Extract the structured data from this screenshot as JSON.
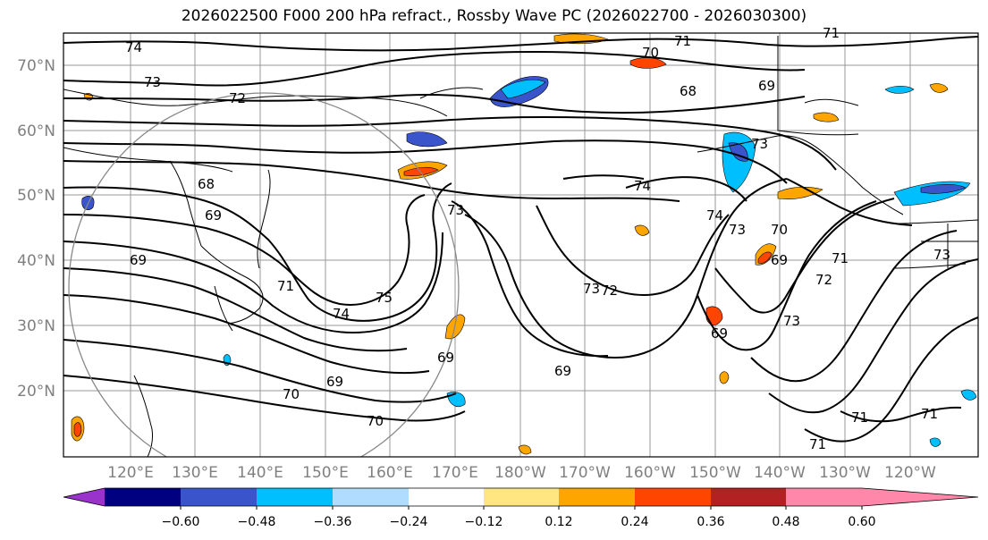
{
  "title": "2026022500 F000 200 hPa refract., Rossby Wave PC (2026022700 - 2026030300)",
  "axes": {
    "lat_labels": [
      "70°N",
      "60°N",
      "50°N",
      "40°N",
      "30°N",
      "20°N"
    ],
    "lon_labels": [
      "120°E",
      "130°E",
      "140°E",
      "150°E",
      "160°E",
      "170°E",
      "180°W",
      "170°W",
      "160°W",
      "150°W",
      "140°W",
      "130°W",
      "120°W"
    ]
  },
  "contour_labels": [
    "74",
    "73",
    "72",
    "71",
    "70",
    "68",
    "69",
    "71",
    "68",
    "69",
    "69",
    "73",
    "75",
    "74",
    "71",
    "73",
    "69",
    "69",
    "70",
    "69",
    "70",
    "74",
    "74",
    "73",
    "70",
    "69",
    "71",
    "72",
    "73",
    "69",
    "73",
    "71",
    "71",
    "71",
    "73",
    "72"
  ],
  "colorbar": {
    "ticks": [
      "−0.60",
      "−0.48",
      "−0.36",
      "−0.24",
      "−0.12",
      "0.12",
      "0.24",
      "0.36",
      "0.48",
      "0.60"
    ],
    "colors": [
      "#9933cc",
      "#000080",
      "#3a55cc",
      "#00bfff",
      "#afdcff",
      "#ffffff",
      "#ffe680",
      "#ffa500",
      "#ff4500",
      "#b22222",
      "#ff88aa"
    ]
  }
}
